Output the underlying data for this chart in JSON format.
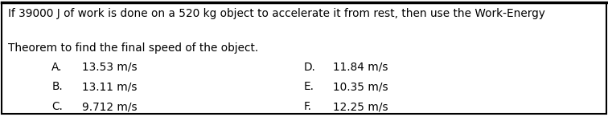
{
  "question_line1": "If 39000 J of work is done on a 520 kg object to accelerate it from rest, then use the Work-Energy",
  "question_line2": "Theorem to find the final speed of the object.",
  "options_left": [
    {
      "label": "A.",
      "value": "13.53 m/s"
    },
    {
      "label": "B.",
      "value": "13.11 m/s"
    },
    {
      "label": "C.",
      "value": "9.712 m/s"
    }
  ],
  "options_right": [
    {
      "label": "D.",
      "value": "11.84 m/s"
    },
    {
      "label": "E.",
      "value": "10.35 m/s"
    },
    {
      "label": "F.",
      "value": "12.25 m/s"
    }
  ],
  "background_color": "#ffffff",
  "border_color": "#000000",
  "text_color": "#000000",
  "question_fontsize": 9.8,
  "option_fontsize": 9.8
}
